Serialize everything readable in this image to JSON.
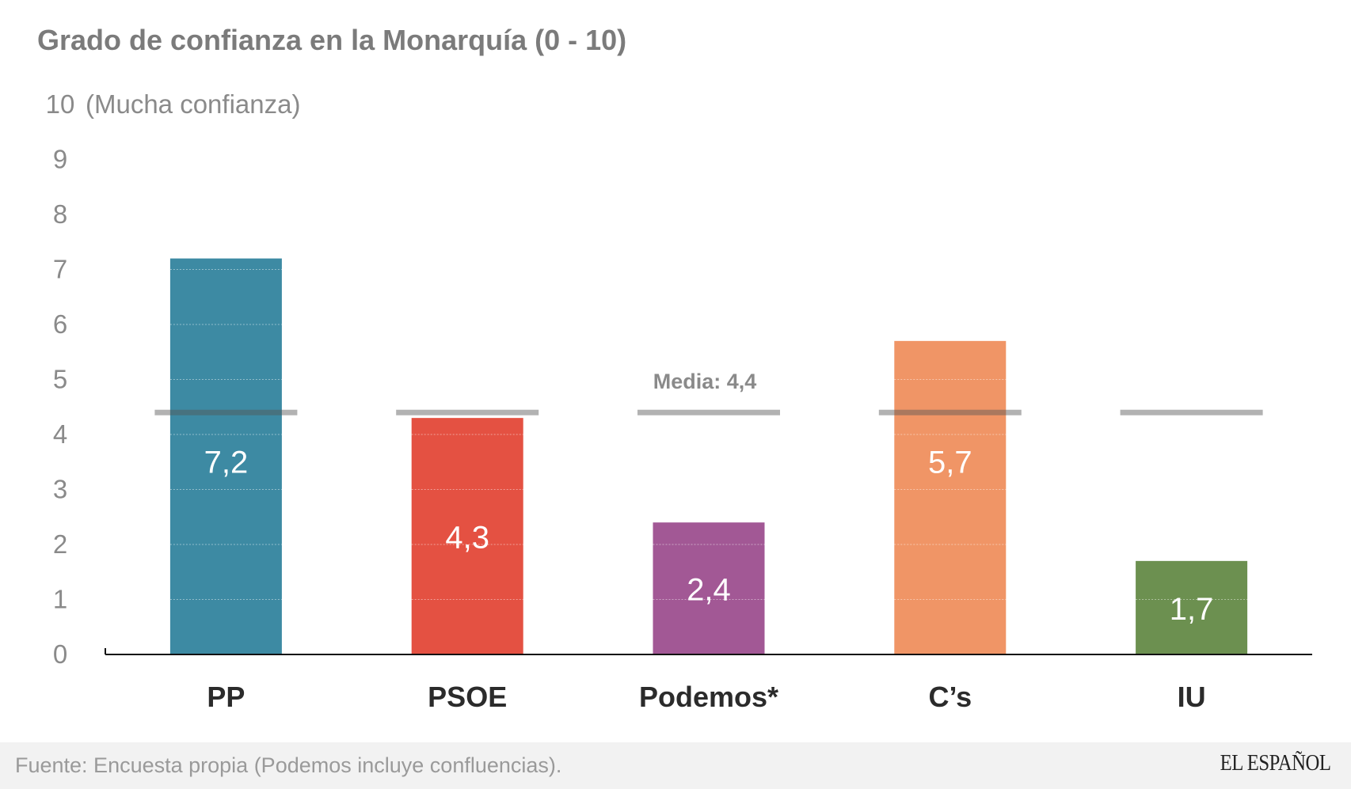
{
  "chart_data": {
    "type": "bar",
    "title": "Grado de confianza en la Monarquía (0 - 10)",
    "ylabel": "",
    "y_top_annotation": "(Mucha confianza)",
    "ylim": [
      0,
      10
    ],
    "yticks": [
      "0",
      "1",
      "2",
      "3",
      "4",
      "5",
      "6",
      "7",
      "8",
      "9",
      "10"
    ],
    "grid": true,
    "categories": [
      "PP",
      "PSOE",
      "Podemos*",
      "C’s",
      "IU"
    ],
    "values": [
      7.2,
      4.3,
      2.4,
      5.7,
      1.7
    ],
    "value_labels": [
      "7,2",
      "4,3",
      "2,4",
      "5,7",
      "1,7"
    ],
    "colors": [
      "#3d8aa3",
      "#e45142",
      "#a25895",
      "#f09566",
      "#6c9050"
    ],
    "reference_line": {
      "value": 4.4,
      "label": "Media: 4,4",
      "color": "#a8a8a8"
    }
  },
  "footer": {
    "source": "Fuente: Encuesta propia (Podemos incluye confluencias).",
    "logo": "EL ESPAÑOL"
  }
}
